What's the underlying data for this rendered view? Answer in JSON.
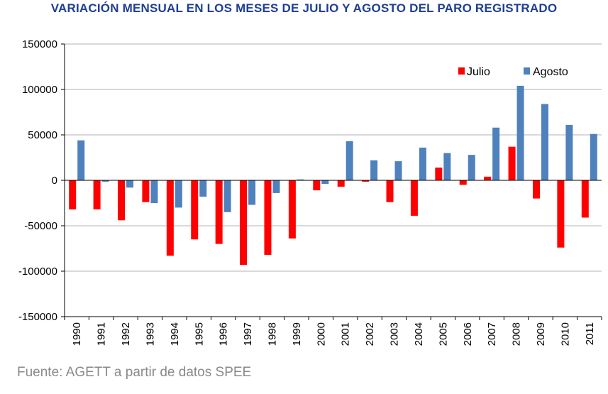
{
  "chart_data": {
    "type": "bar",
    "title": "VARIACIÓN MENSUAL EN LOS MESES DE JULIO Y AGOSTO DEL PARO REGISTRADO",
    "source": "Fuente: AGETT a partir de datos SPEE",
    "xlabel": "",
    "ylabel": "",
    "ylim": [
      -150000,
      150000
    ],
    "yticks": [
      "150000",
      "100000",
      "50000",
      "0",
      "-50000",
      "-100000",
      "-150000"
    ],
    "ytick_values": [
      150000,
      100000,
      50000,
      0,
      -50000,
      -100000,
      -150000
    ],
    "grid": true,
    "legend_position": "top-right",
    "categories": [
      "1990",
      "1991",
      "1992",
      "1993",
      "1994",
      "1995",
      "1996",
      "1997",
      "1998",
      "1999",
      "2000",
      "2001",
      "2002",
      "2003",
      "2004",
      "2005",
      "2006",
      "2007",
      "2008",
      "2009",
      "2010",
      "2011"
    ],
    "series": [
      {
        "name": "Julio",
        "color": "#ff0000",
        "values": [
          -32000,
          -32000,
          -44000,
          -24000,
          -83000,
          -65000,
          -70000,
          -93000,
          -82000,
          -64000,
          -11000,
          -7000,
          -1500,
          -24000,
          -39000,
          14000,
          -5000,
          4000,
          37000,
          -20000,
          -74000,
          -41000
        ]
      },
      {
        "name": "Agosto",
        "color": "#4f81bd",
        "values": [
          44000,
          -1500,
          -8000,
          -25000,
          -30000,
          -18000,
          -35000,
          -27000,
          -14000,
          1000,
          -4000,
          43000,
          22000,
          21000,
          36000,
          30000,
          28000,
          58000,
          104000,
          84000,
          61000,
          51000
        ]
      }
    ]
  }
}
